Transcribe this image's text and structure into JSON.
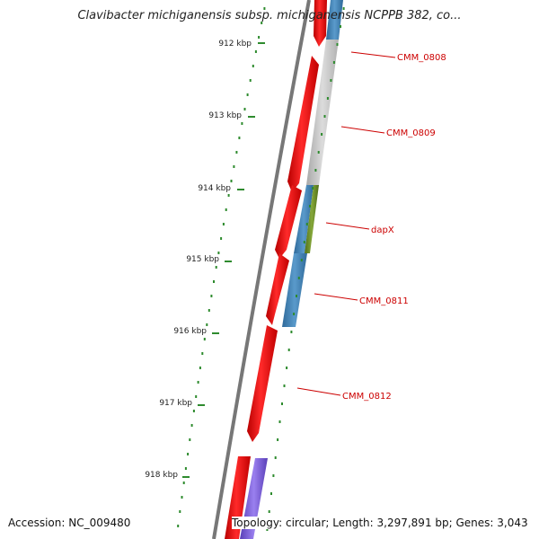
{
  "title": "Clavibacter michiganensis subsp. michiganensis NCPPB 382, co...",
  "accession": "Accession: NC_009480",
  "summary": "Topology: circular; Length: 3,297,891 bp; Genes: 3,043",
  "scale_labels": [
    "912 kbp",
    "913 kbp",
    "914 kbp",
    "915 kbp",
    "916 kbp",
    "917 kbp",
    "918 kbp"
  ],
  "gene_labels": [
    "CMM_0808",
    "CMM_0809",
    "dapX",
    "CMM_0811",
    "CMM_0812"
  ],
  "colors": {
    "backbone": "#777777",
    "cds": "#ff0000",
    "blast_blue": "#4a86b8",
    "blast_gray": "#c8c8c8",
    "blast_green": "#6b8e23",
    "blast_purple": "#7b5fd6",
    "tick": "#2e8b2e",
    "label": "#cc0000"
  }
}
